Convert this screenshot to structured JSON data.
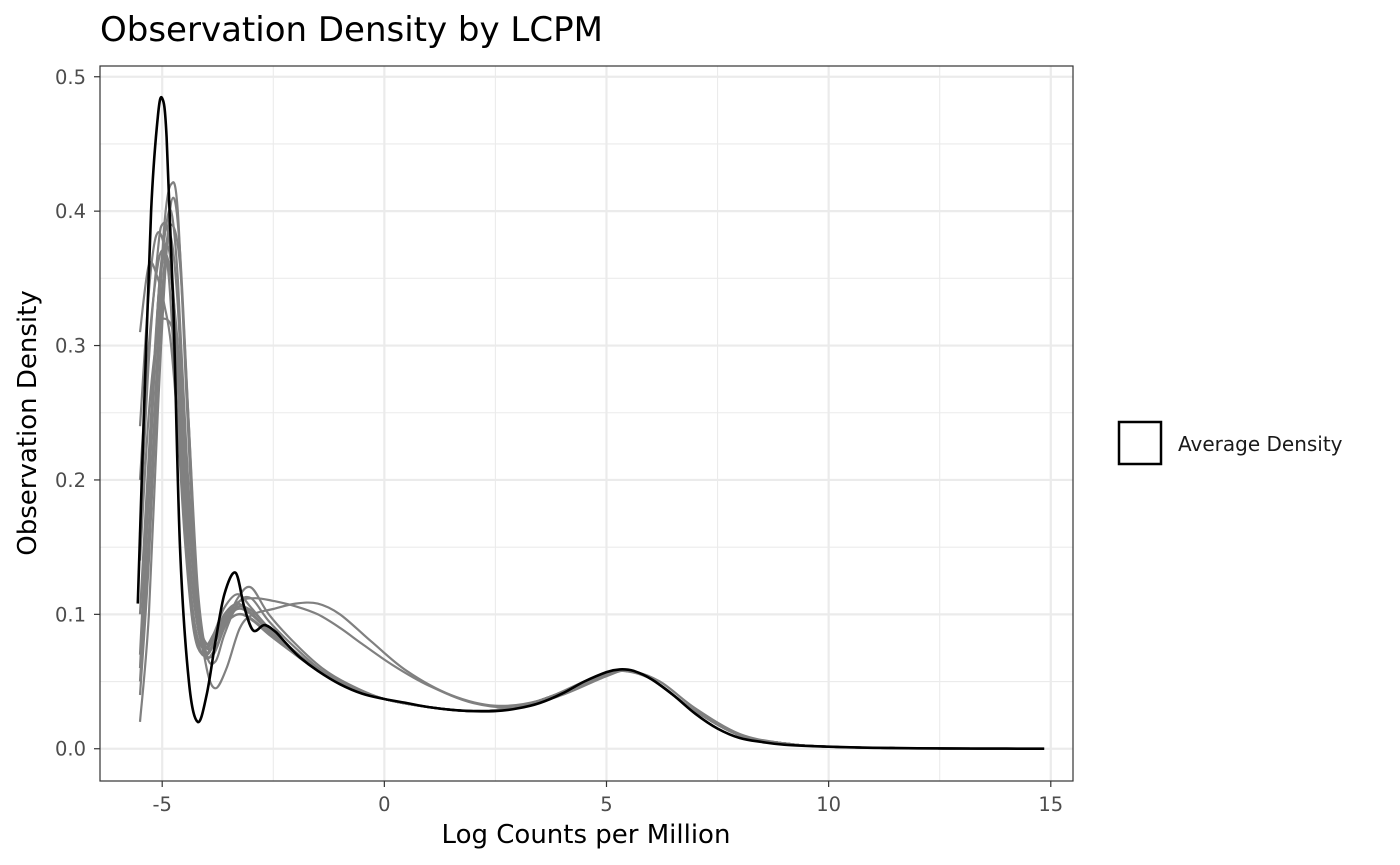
{
  "chart_data": {
    "type": "line",
    "title": "Observation Density by LCPM",
    "xlabel": "Log Counts per Million",
    "ylabel": "Observation Density",
    "xlim": [
      -6.4,
      15.5
    ],
    "ylim": [
      -0.024,
      0.508
    ],
    "x_ticks": [
      -5,
      0,
      5,
      10,
      15
    ],
    "x_tick_labels": [
      "-5",
      "0",
      "5",
      "10",
      "15"
    ],
    "y_ticks": [
      0.0,
      0.1,
      0.2,
      0.3,
      0.4,
      0.5
    ],
    "y_tick_labels": [
      "0.0",
      "0.1",
      "0.2",
      "0.3",
      "0.4",
      "0.5"
    ],
    "grid": true,
    "legend": {
      "position": "right",
      "entries": [
        "Average Density"
      ]
    },
    "colors": {
      "samples": "#808080",
      "average": "#000000",
      "grid": "#ebebeb",
      "border": "#333333"
    },
    "series": [
      {
        "name": "Average Density",
        "role": "average",
        "x": [
          -5.55,
          -5.4,
          -5.25,
          -5.1,
          -5.0,
          -4.9,
          -4.75,
          -4.6,
          -4.4,
          -4.2,
          -4.0,
          -3.8,
          -3.6,
          -3.35,
          -3.15,
          -2.95,
          -2.7,
          -2.45,
          -2.2,
          -1.9,
          -1.5,
          -1.0,
          -0.5,
          0.0,
          0.5,
          1.0,
          1.5,
          2.0,
          2.5,
          3.0,
          3.5,
          4.0,
          4.5,
          5.0,
          5.3,
          5.6,
          6.0,
          6.5,
          7.0,
          7.5,
          8.0,
          8.5,
          9.0,
          10.0,
          11.0,
          12.0,
          13.0,
          14.0,
          14.85
        ],
        "y": [
          0.108,
          0.26,
          0.4,
          0.47,
          0.484,
          0.455,
          0.33,
          0.15,
          0.05,
          0.02,
          0.04,
          0.08,
          0.115,
          0.131,
          0.105,
          0.088,
          0.092,
          0.087,
          0.078,
          0.068,
          0.058,
          0.048,
          0.041,
          0.037,
          0.034,
          0.031,
          0.029,
          0.028,
          0.028,
          0.03,
          0.034,
          0.041,
          0.05,
          0.057,
          0.059,
          0.058,
          0.052,
          0.04,
          0.026,
          0.015,
          0.008,
          0.005,
          0.003,
          0.0015,
          0.0007,
          0.0003,
          0.0002,
          0.0001,
          0.0
        ]
      },
      {
        "role": "sample",
        "x": [
          -5.5,
          -5.3,
          -5.1,
          -5.0,
          -4.85,
          -4.7,
          -4.5,
          -4.3,
          -4.1,
          -3.9,
          -3.6,
          -3.3,
          -3.0,
          -2.6,
          -2.0,
          -1.4,
          -0.8,
          0.0,
          1.0,
          2.0,
          3.0,
          4.0,
          5.0,
          5.4,
          6.0,
          7.0,
          8.0,
          9.0,
          10.0,
          12.0,
          14.85
        ],
        "y": [
          0.16,
          0.29,
          0.37,
          0.39,
          0.38,
          0.3,
          0.18,
          0.1,
          0.075,
          0.08,
          0.1,
          0.108,
          0.1,
          0.088,
          0.07,
          0.056,
          0.046,
          0.037,
          0.031,
          0.028,
          0.031,
          0.042,
          0.055,
          0.058,
          0.052,
          0.028,
          0.01,
          0.004,
          0.0015,
          0.0003,
          0.0
        ]
      },
      {
        "role": "sample",
        "x": [
          -5.5,
          -5.3,
          -5.1,
          -4.95,
          -4.8,
          -4.65,
          -4.45,
          -4.25,
          -4.05,
          -3.85,
          -3.6,
          -3.3,
          -3.0,
          -2.6,
          -2.0,
          -1.4,
          -0.8,
          0.0,
          1.0,
          2.0,
          3.0,
          4.0,
          5.0,
          5.4,
          6.0,
          7.0,
          8.0,
          9.0,
          10.0,
          12.0,
          14.85
        ],
        "y": [
          0.07,
          0.2,
          0.33,
          0.38,
          0.4,
          0.35,
          0.22,
          0.12,
          0.08,
          0.085,
          0.105,
          0.115,
          0.105,
          0.09,
          0.072,
          0.057,
          0.047,
          0.037,
          0.031,
          0.028,
          0.031,
          0.042,
          0.055,
          0.058,
          0.052,
          0.028,
          0.01,
          0.004,
          0.0015,
          0.0003,
          0.0
        ]
      },
      {
        "role": "sample",
        "x": [
          -5.5,
          -5.3,
          -5.1,
          -4.95,
          -4.8,
          -4.65,
          -4.45,
          -4.25,
          -4.05,
          -3.85,
          -3.6,
          -3.3,
          -3.0,
          -2.6,
          -2.0,
          -1.4,
          -0.8,
          0.0,
          1.0,
          2.0,
          3.0,
          4.0,
          5.0,
          5.4,
          6.0,
          7.0,
          8.0,
          9.0,
          10.0,
          12.0,
          14.85
        ],
        "y": [
          0.05,
          0.16,
          0.3,
          0.39,
          0.42,
          0.4,
          0.26,
          0.13,
          0.075,
          0.07,
          0.09,
          0.112,
          0.12,
          0.1,
          0.078,
          0.06,
          0.048,
          0.037,
          0.031,
          0.028,
          0.031,
          0.042,
          0.055,
          0.058,
          0.052,
          0.028,
          0.01,
          0.004,
          0.0015,
          0.0003,
          0.0
        ]
      },
      {
        "role": "sample",
        "x": [
          -5.5,
          -5.3,
          -5.1,
          -4.9,
          -4.75,
          -4.6,
          -4.4,
          -4.2,
          -4.0,
          -3.8,
          -3.55,
          -3.25,
          -2.95,
          -2.5,
          -2.0,
          -1.5,
          -1.0,
          -0.3,
          0.5,
          1.5,
          2.5,
          3.5,
          4.5,
          5.2,
          6.0,
          7.0,
          8.0,
          9.0,
          10.0,
          12.0,
          14.85
        ],
        "y": [
          0.02,
          0.1,
          0.25,
          0.37,
          0.41,
          0.37,
          0.24,
          0.11,
          0.06,
          0.045,
          0.06,
          0.09,
          0.1,
          0.104,
          0.108,
          0.108,
          0.1,
          0.08,
          0.058,
          0.04,
          0.032,
          0.036,
          0.05,
          0.058,
          0.052,
          0.028,
          0.01,
          0.004,
          0.0015,
          0.0003,
          0.0
        ]
      },
      {
        "role": "sample",
        "x": [
          -5.5,
          -5.3,
          -5.1,
          -4.95,
          -4.8,
          -4.6,
          -4.4,
          -4.2,
          -4.0,
          -3.8,
          -3.55,
          -3.25,
          -2.9,
          -2.5,
          -2.0,
          -1.5,
          -1.0,
          -0.5,
          0.2,
          1.0,
          2.0,
          3.0,
          4.0,
          5.0,
          5.5,
          6.2,
          7.0,
          8.0,
          9.0,
          10.0,
          12.0,
          14.85
        ],
        "y": [
          0.06,
          0.19,
          0.33,
          0.37,
          0.36,
          0.26,
          0.15,
          0.09,
          0.075,
          0.085,
          0.1,
          0.11,
          0.112,
          0.11,
          0.106,
          0.1,
          0.09,
          0.078,
          0.062,
          0.047,
          0.034,
          0.031,
          0.04,
          0.054,
          0.058,
          0.05,
          0.03,
          0.011,
          0.004,
          0.0015,
          0.0003,
          0.0
        ]
      },
      {
        "role": "sample",
        "x": [
          -5.5,
          -5.3,
          -5.1,
          -4.95,
          -4.8,
          -4.6,
          -4.4,
          -4.2,
          -4.0,
          -3.8,
          -3.55,
          -3.25,
          -2.95,
          -2.6,
          -2.0,
          -1.4,
          -0.8,
          0.0,
          1.0,
          2.0,
          3.0,
          4.0,
          5.0,
          5.4,
          6.0,
          7.0,
          8.0,
          9.0,
          10.0,
          12.0,
          14.85
        ],
        "y": [
          0.31,
          0.36,
          0.35,
          0.33,
          0.3,
          0.22,
          0.13,
          0.08,
          0.07,
          0.08,
          0.095,
          0.1,
          0.095,
          0.085,
          0.07,
          0.056,
          0.046,
          0.037,
          0.031,
          0.028,
          0.031,
          0.042,
          0.055,
          0.058,
          0.052,
          0.028,
          0.01,
          0.004,
          0.0015,
          0.0003,
          0.0
        ]
      },
      {
        "role": "sample",
        "x": [
          -5.5,
          -5.3,
          -5.15,
          -5.0,
          -4.85,
          -4.7,
          -4.5,
          -4.3,
          -4.1,
          -3.9,
          -3.6,
          -3.3,
          -3.0,
          -2.6,
          -2.0,
          -1.4,
          -0.8,
          0.0,
          1.0,
          2.0,
          3.0,
          4.0,
          5.0,
          5.4,
          6.0,
          7.0,
          8.0,
          9.0,
          10.0,
          12.0,
          14.85
        ],
        "y": [
          0.24,
          0.34,
          0.38,
          0.38,
          0.35,
          0.27,
          0.16,
          0.09,
          0.07,
          0.075,
          0.092,
          0.1,
          0.097,
          0.086,
          0.07,
          0.056,
          0.046,
          0.037,
          0.031,
          0.028,
          0.031,
          0.042,
          0.055,
          0.058,
          0.052,
          0.028,
          0.01,
          0.004,
          0.0015,
          0.0003,
          0.0
        ]
      },
      {
        "role": "sample",
        "x": [
          -5.5,
          -5.3,
          -5.1,
          -4.95,
          -4.8,
          -4.65,
          -4.45,
          -4.25,
          -4.05,
          -3.85,
          -3.6,
          -3.3,
          -3.0,
          -2.6,
          -2.0,
          -1.4,
          -0.8,
          0.0,
          1.0,
          2.0,
          3.0,
          4.0,
          5.0,
          5.4,
          6.0,
          7.0,
          8.0,
          9.0,
          10.0,
          12.0,
          14.85
        ],
        "y": [
          0.1,
          0.22,
          0.33,
          0.37,
          0.38,
          0.33,
          0.21,
          0.11,
          0.07,
          0.072,
          0.09,
          0.105,
          0.103,
          0.09,
          0.072,
          0.057,
          0.047,
          0.037,
          0.031,
          0.028,
          0.031,
          0.042,
          0.055,
          0.058,
          0.052,
          0.028,
          0.01,
          0.004,
          0.0015,
          0.0003,
          0.0
        ]
      },
      {
        "role": "sample",
        "x": [
          -5.5,
          -5.3,
          -5.1,
          -4.95,
          -4.75,
          -4.6,
          -4.4,
          -4.2,
          -4.0,
          -3.8,
          -3.6,
          -3.3,
          -3.0,
          -2.6,
          -2.0,
          -1.4,
          -0.8,
          0.0,
          1.0,
          2.0,
          3.0,
          4.0,
          5.0,
          5.4,
          6.0,
          7.0,
          8.0,
          9.0,
          10.0,
          12.0,
          14.85
        ],
        "y": [
          0.14,
          0.25,
          0.31,
          0.32,
          0.31,
          0.27,
          0.17,
          0.1,
          0.075,
          0.08,
          0.094,
          0.104,
          0.1,
          0.088,
          0.071,
          0.057,
          0.047,
          0.037,
          0.031,
          0.028,
          0.031,
          0.042,
          0.055,
          0.058,
          0.052,
          0.028,
          0.01,
          0.004,
          0.0015,
          0.0003,
          0.0
        ]
      },
      {
        "role": "sample",
        "x": [
          -5.5,
          -5.3,
          -5.1,
          -4.95,
          -4.8,
          -4.6,
          -4.4,
          -4.2,
          -4.0,
          -3.8,
          -3.6,
          -3.3,
          -3.0,
          -2.6,
          -2.0,
          -1.4,
          -0.8,
          0.0,
          1.0,
          2.0,
          3.0,
          4.0,
          5.0,
          5.4,
          6.0,
          7.0,
          8.0,
          9.0,
          10.0,
          12.0,
          14.85
        ],
        "y": [
          0.2,
          0.3,
          0.36,
          0.37,
          0.35,
          0.28,
          0.17,
          0.1,
          0.078,
          0.082,
          0.096,
          0.106,
          0.101,
          0.088,
          0.071,
          0.057,
          0.047,
          0.037,
          0.031,
          0.028,
          0.031,
          0.042,
          0.055,
          0.058,
          0.052,
          0.028,
          0.01,
          0.004,
          0.0015,
          0.0003,
          0.0
        ]
      },
      {
        "role": "sample",
        "x": [
          -5.5,
          -5.3,
          -5.1,
          -4.95,
          -4.8,
          -4.6,
          -4.4,
          -4.2,
          -4.0,
          -3.8,
          -3.6,
          -3.3,
          -3.0,
          -2.6,
          -2.0,
          -1.4,
          -0.8,
          0.0,
          1.0,
          2.0,
          3.0,
          4.0,
          5.0,
          5.4,
          6.0,
          7.0,
          8.0,
          9.0,
          10.0,
          12.0,
          14.85
        ],
        "y": [
          0.04,
          0.14,
          0.28,
          0.36,
          0.39,
          0.36,
          0.24,
          0.12,
          0.07,
          0.065,
          0.085,
          0.108,
          0.112,
          0.095,
          0.075,
          0.058,
          0.047,
          0.037,
          0.031,
          0.028,
          0.031,
          0.042,
          0.055,
          0.058,
          0.052,
          0.028,
          0.01,
          0.004,
          0.0015,
          0.0003,
          0.0
        ]
      }
    ]
  },
  "legend": {
    "label": "Average Density"
  }
}
